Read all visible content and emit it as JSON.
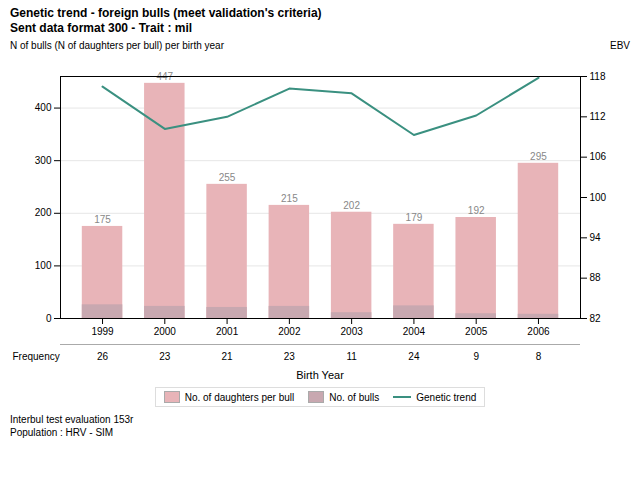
{
  "chart_data": {
    "type": "bar",
    "title": "Genetic trend - foreign bulls (meet validation's criteria)",
    "subtitle": "Sent data format 300 - Trait : mil",
    "categories": [
      1999,
      2000,
      2001,
      2002,
      2003,
      2004,
      2005,
      2006
    ],
    "series": [
      {
        "name": "No. of daughters per bull",
        "color": "#e8b4b8",
        "values": [
          175,
          447,
          255,
          215,
          202,
          179,
          192,
          295
        ],
        "data_labels": true
      },
      {
        "name": "No. of bulls",
        "color": "#c8a8b0",
        "values": [
          26,
          23,
          21,
          23,
          11,
          24,
          9,
          8
        ]
      },
      {
        "name": "Genetic trend",
        "type": "line",
        "axis": "y2",
        "color": "#3a9080",
        "values": [
          116.5,
          110.2,
          112.0,
          116.2,
          115.5,
          109.3,
          112.2,
          117.8
        ]
      }
    ],
    "stacked": false,
    "xlabel": "Birth Year",
    "ylabel": "N of bulls (N of daughters per bull) per birth year",
    "y2label": "EBV",
    "ylim": [
      0,
      460
    ],
    "yticks": [
      0,
      100,
      200,
      300,
      400
    ],
    "y2lim": [
      82,
      118
    ],
    "y2ticks": [
      82,
      88,
      94,
      100,
      106,
      112,
      118
    ],
    "grid": true,
    "legend": "bottom",
    "frequency_label": "Frequency",
    "frequency": [
      26,
      23,
      21,
      23,
      11,
      24,
      9,
      8
    ],
    "annotations": [
      "Interbul test evaluation 153r",
      "Population : HRV - SIM"
    ]
  }
}
